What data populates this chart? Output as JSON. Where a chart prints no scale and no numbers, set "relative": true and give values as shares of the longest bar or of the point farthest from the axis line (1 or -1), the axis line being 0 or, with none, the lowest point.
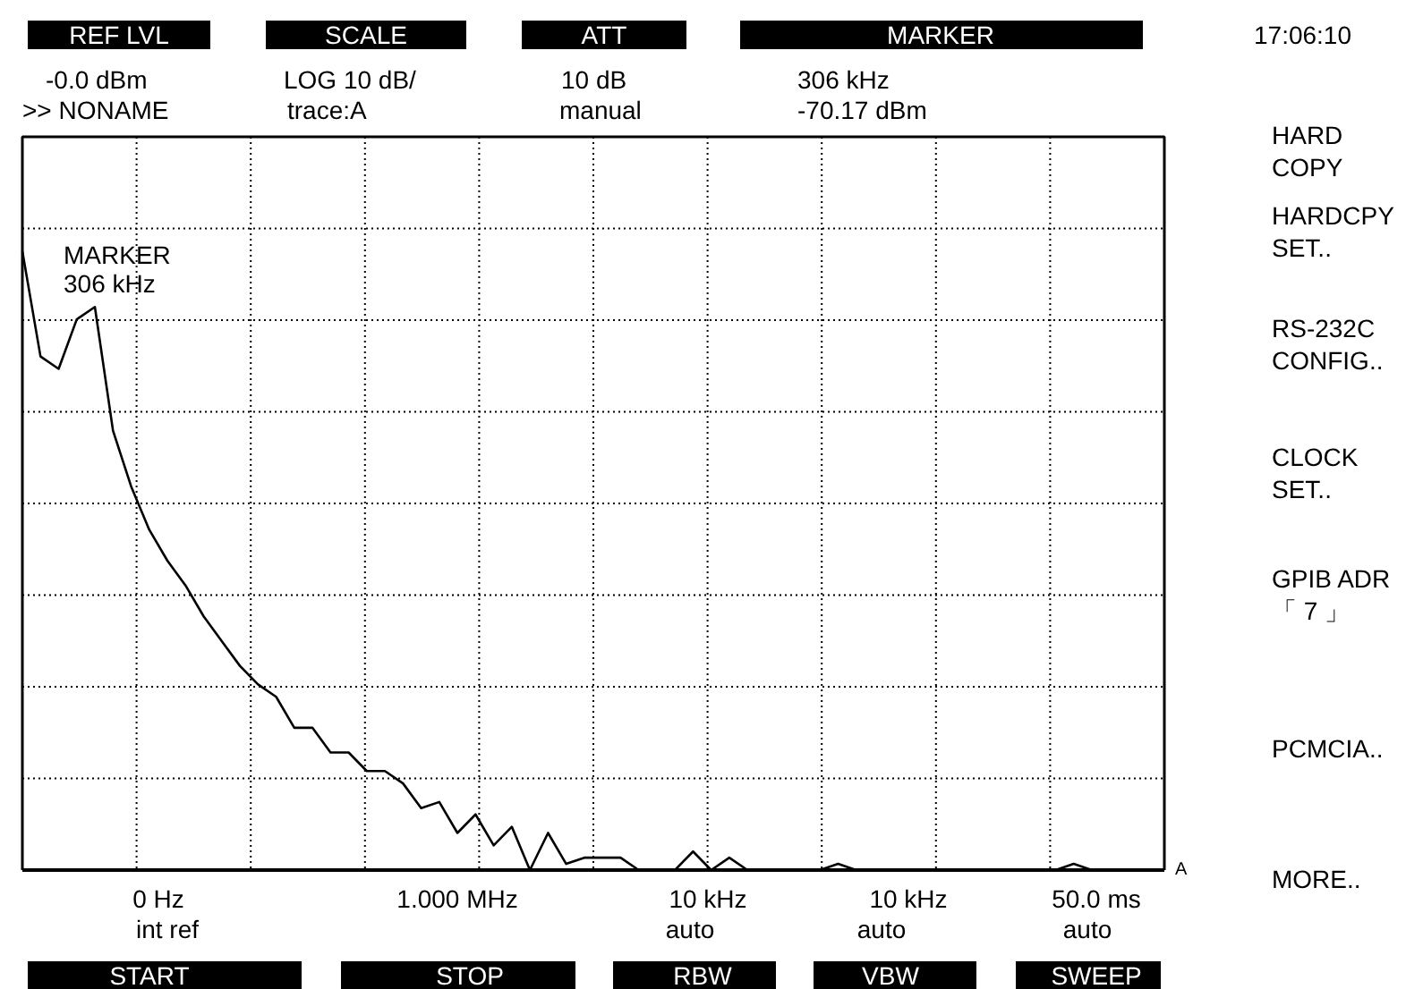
{
  "chart_data": {
    "type": "line",
    "relative": true,
    "grid": true,
    "line_style": "solid",
    "marker": "none",
    "categories": [
      null,
      null,
      null,
      null,
      null,
      null,
      null,
      null,
      null,
      null,
      null,
      null,
      null,
      null,
      null,
      null,
      null,
      null,
      null,
      null,
      null,
      null,
      null,
      null,
      null,
      null,
      null,
      null,
      null,
      null,
      null,
      null,
      null,
      null,
      null,
      null,
      null,
      null,
      null,
      null,
      null,
      null,
      null,
      null,
      null,
      null,
      null,
      null,
      null,
      null,
      null,
      null,
      null,
      null,
      null,
      null,
      null,
      null,
      null,
      null,
      null,
      null,
      null,
      null
    ],
    "series": [
      {
        "color": "#000000",
        "values": [
          1,
          0.83,
          0.81,
          0.89,
          0.91,
          0.71,
          0.62,
          0.55,
          0.5,
          0.46,
          0.41,
          0.37,
          0.33,
          0.3,
          0.28,
          0.23,
          0.23,
          0.19,
          0.19,
          0.16,
          0.16,
          0.14,
          0.1,
          0.11,
          0.06,
          0.09,
          0.04,
          0.07,
          0,
          0.06,
          0.01,
          0.02,
          0.02,
          0.02,
          0,
          0,
          0,
          0.03,
          0,
          0.02,
          0,
          0,
          0,
          0,
          0,
          0.01,
          0,
          0,
          0,
          0,
          0,
          0,
          0,
          0,
          0,
          0,
          0,
          0,
          0.01,
          0,
          0,
          0,
          0,
          0
        ]
      }
    ],
    "annotations": [
      "REF LVL",
      "SCALE",
      "ATT",
      "MARKER",
      "17:06:10",
      "-0.0 dBm",
      ">> NONAME",
      "LOG 10 dB/",
      "trace:A",
      "10 dB",
      "manual",
      "306 kHz",
      "-70.17 dBm",
      "MARKER",
      "306 kHz",
      "0 Hz",
      "int ref",
      "START",
      "1.000 MHz",
      "STOP",
      "10 kHz",
      "auto",
      "RBW",
      "10 kHz",
      "auto",
      "VBW",
      "50.0 ms",
      "auto",
      "SWEEP",
      "HARD\nCOPY",
      "HARDCPY\nSET..",
      "RS-232C\nCONFIG..",
      "CLOCK\nSET..",
      "GPIB ADR\n「 7 」",
      "PCMCIA..",
      "MORE..",
      "A"
    ]
  }
}
